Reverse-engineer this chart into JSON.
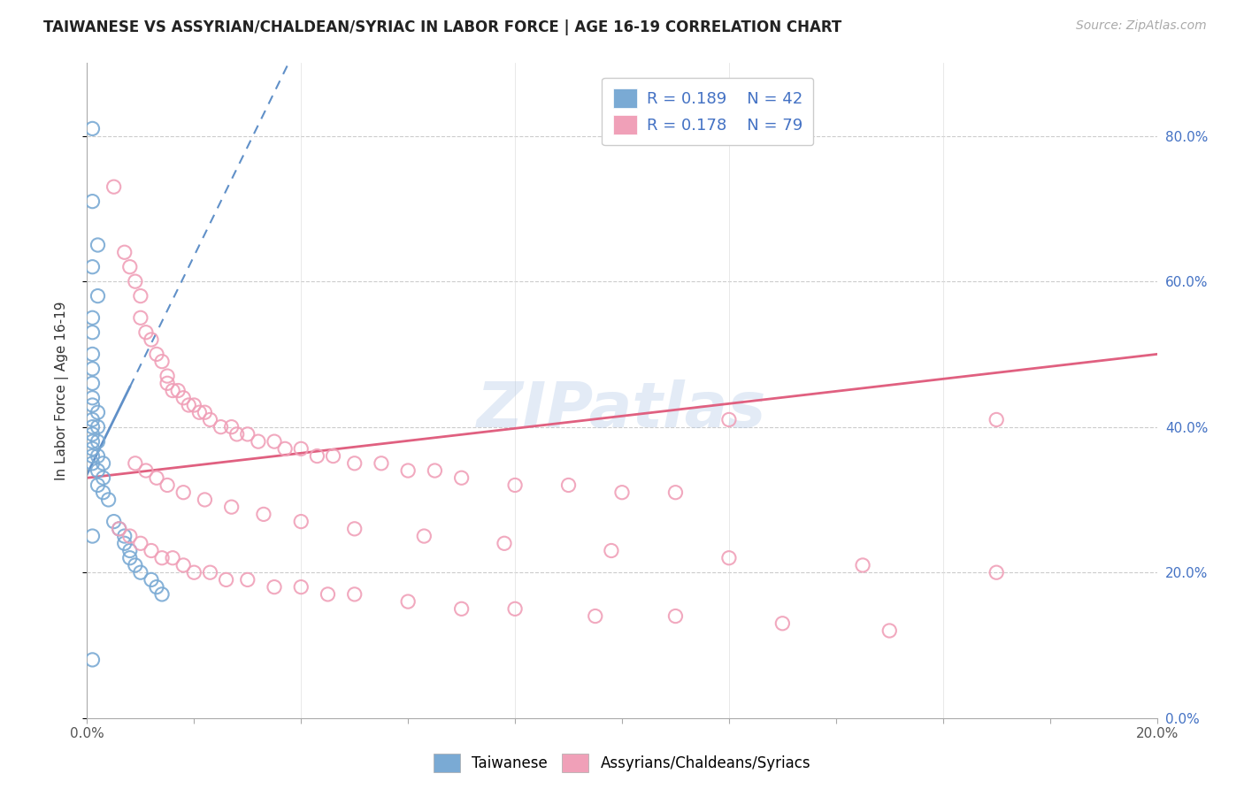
{
  "title": "TAIWANESE VS ASSYRIAN/CHALDEAN/SYRIAC IN LABOR FORCE | AGE 16-19 CORRELATION CHART",
  "source": "Source: ZipAtlas.com",
  "ylabel": "In Labor Force | Age 16-19",
  "xlim": [
    0.0,
    0.2
  ],
  "ylim": [
    0.0,
    0.9
  ],
  "background_color": "#ffffff",
  "blue_color": "#7aaad4",
  "pink_color": "#f0a0b8",
  "trendline_blue_color": "#6090c8",
  "trendline_pink_color": "#e06080",
  "label_color": "#4472c4",
  "legend_R1": "0.189",
  "legend_N1": "42",
  "legend_R2": "0.178",
  "legend_N2": "79",
  "taiwanese_x": [
    0.001,
    0.001,
    0.002,
    0.001,
    0.002,
    0.001,
    0.001,
    0.001,
    0.001,
    0.001,
    0.001,
    0.001,
    0.001,
    0.001,
    0.001,
    0.001,
    0.002,
    0.002,
    0.001,
    0.001,
    0.001,
    0.002,
    0.002,
    0.002,
    0.002,
    0.003,
    0.003,
    0.003,
    0.004,
    0.005,
    0.006,
    0.007,
    0.007,
    0.008,
    0.008,
    0.009,
    0.01,
    0.012,
    0.013,
    0.014,
    0.001,
    0.001
  ],
  "taiwanese_y": [
    0.81,
    0.71,
    0.65,
    0.62,
    0.58,
    0.55,
    0.53,
    0.5,
    0.48,
    0.46,
    0.44,
    0.43,
    0.41,
    0.4,
    0.39,
    0.38,
    0.42,
    0.4,
    0.37,
    0.36,
    0.35,
    0.38,
    0.36,
    0.34,
    0.32,
    0.35,
    0.33,
    0.31,
    0.3,
    0.27,
    0.26,
    0.25,
    0.24,
    0.23,
    0.22,
    0.21,
    0.2,
    0.19,
    0.18,
    0.17,
    0.25,
    0.08
  ],
  "assyrian_x": [
    0.005,
    0.007,
    0.008,
    0.009,
    0.01,
    0.01,
    0.011,
    0.012,
    0.013,
    0.014,
    0.015,
    0.015,
    0.016,
    0.017,
    0.018,
    0.019,
    0.02,
    0.021,
    0.022,
    0.023,
    0.025,
    0.027,
    0.028,
    0.03,
    0.032,
    0.035,
    0.037,
    0.04,
    0.043,
    0.046,
    0.05,
    0.055,
    0.06,
    0.065,
    0.07,
    0.08,
    0.09,
    0.1,
    0.11,
    0.12,
    0.17,
    0.006,
    0.008,
    0.01,
    0.012,
    0.014,
    0.016,
    0.018,
    0.02,
    0.023,
    0.026,
    0.03,
    0.035,
    0.04,
    0.045,
    0.05,
    0.06,
    0.07,
    0.08,
    0.095,
    0.11,
    0.13,
    0.15,
    0.009,
    0.011,
    0.013,
    0.015,
    0.018,
    0.022,
    0.027,
    0.033,
    0.04,
    0.05,
    0.063,
    0.078,
    0.098,
    0.12,
    0.145,
    0.17
  ],
  "assyrian_y": [
    0.73,
    0.64,
    0.62,
    0.6,
    0.58,
    0.55,
    0.53,
    0.52,
    0.5,
    0.49,
    0.47,
    0.46,
    0.45,
    0.45,
    0.44,
    0.43,
    0.43,
    0.42,
    0.42,
    0.41,
    0.4,
    0.4,
    0.39,
    0.39,
    0.38,
    0.38,
    0.37,
    0.37,
    0.36,
    0.36,
    0.35,
    0.35,
    0.34,
    0.34,
    0.33,
    0.32,
    0.32,
    0.31,
    0.31,
    0.41,
    0.41,
    0.26,
    0.25,
    0.24,
    0.23,
    0.22,
    0.22,
    0.21,
    0.2,
    0.2,
    0.19,
    0.19,
    0.18,
    0.18,
    0.17,
    0.17,
    0.16,
    0.15,
    0.15,
    0.14,
    0.14,
    0.13,
    0.12,
    0.35,
    0.34,
    0.33,
    0.32,
    0.31,
    0.3,
    0.29,
    0.28,
    0.27,
    0.26,
    0.25,
    0.24,
    0.23,
    0.22,
    0.21,
    0.2
  ]
}
